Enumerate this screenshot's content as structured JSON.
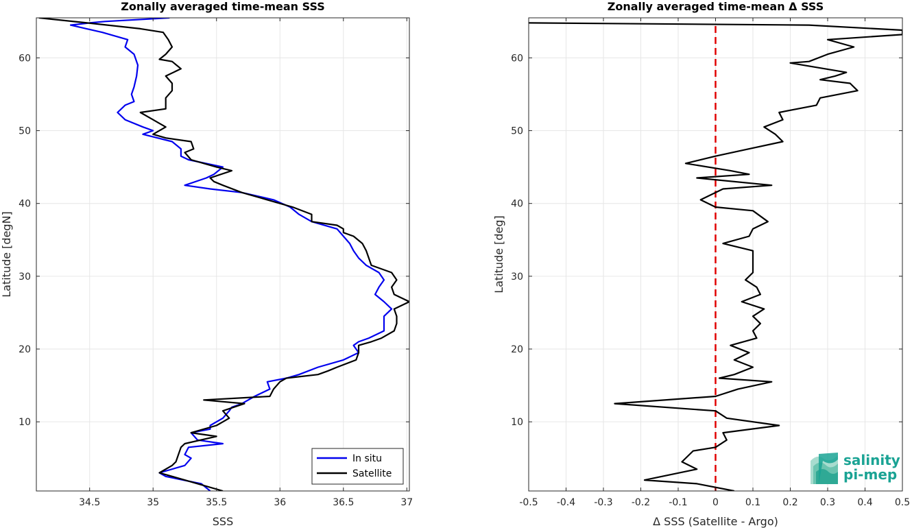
{
  "logo": {
    "line1": "salinity",
    "line2": "pi-mep",
    "color": "#1aa394"
  },
  "chart_data": [
    {
      "type": "line",
      "title": "Zonally averaged time-mean SSS",
      "xlabel": "SSS",
      "ylabel": "Latitude [degN]",
      "xlim": [
        34.08,
        37.02
      ],
      "ylim": [
        0.5,
        65.5
      ],
      "xticks": [
        34.5,
        35,
        35.5,
        36,
        36.5,
        37
      ],
      "yticks": [
        10,
        20,
        30,
        40,
        50,
        60
      ],
      "grid": true,
      "legend": "bottom-right",
      "series": [
        {
          "name": "In situ",
          "color": "#0000ee",
          "points": [
            [
              35.13,
              65.5
            ],
            [
              34.62,
              65.0
            ],
            [
              34.5,
              64.8
            ],
            [
              34.35,
              64.5
            ],
            [
              34.6,
              63.5
            ],
            [
              34.8,
              62.5
            ],
            [
              34.78,
              61.5
            ],
            [
              34.85,
              60.5
            ],
            [
              34.88,
              59.0
            ],
            [
              34.87,
              57.5
            ],
            [
              34.85,
              56.0
            ],
            [
              34.83,
              55.0
            ],
            [
              34.85,
              54.0
            ],
            [
              34.78,
              53.5
            ],
            [
              34.72,
              52.5
            ],
            [
              34.78,
              51.5
            ],
            [
              34.92,
              50.5
            ],
            [
              35.0,
              50.0
            ],
            [
              34.92,
              49.5
            ],
            [
              35.15,
              48.5
            ],
            [
              35.22,
              47.5
            ],
            [
              35.22,
              46.5
            ],
            [
              35.28,
              46.0
            ],
            [
              35.55,
              45.0
            ],
            [
              35.48,
              44.0
            ],
            [
              35.42,
              43.5
            ],
            [
              35.25,
              42.5
            ],
            [
              35.45,
              42.0
            ],
            [
              35.7,
              41.5
            ],
            [
              35.95,
              40.5
            ],
            [
              36.08,
              39.5
            ],
            [
              36.15,
              38.5
            ],
            [
              36.25,
              37.5
            ],
            [
              36.45,
              36.5
            ],
            [
              36.5,
              35.5
            ],
            [
              36.55,
              34.5
            ],
            [
              36.58,
              33.5
            ],
            [
              36.62,
              32.5
            ],
            [
              36.68,
              31.5
            ],
            [
              36.78,
              30.5
            ],
            [
              36.82,
              29.5
            ],
            [
              36.78,
              28.5
            ],
            [
              36.75,
              27.5
            ],
            [
              36.82,
              26.5
            ],
            [
              36.88,
              25.5
            ],
            [
              36.82,
              24.5
            ],
            [
              36.82,
              23.5
            ],
            [
              36.82,
              22.5
            ],
            [
              36.7,
              21.5
            ],
            [
              36.62,
              21.0
            ],
            [
              36.58,
              20.5
            ],
            [
              36.62,
              19.5
            ],
            [
              36.5,
              18.5
            ],
            [
              36.3,
              17.5
            ],
            [
              36.15,
              16.5
            ],
            [
              36.05,
              16.0
            ],
            [
              35.9,
              15.5
            ],
            [
              35.92,
              14.5
            ],
            [
              35.8,
              13.5
            ],
            [
              35.7,
              12.5
            ],
            [
              35.62,
              12.0
            ],
            [
              35.6,
              11.5
            ],
            [
              35.55,
              10.5
            ],
            [
              35.45,
              9.5
            ],
            [
              35.45,
              9.0
            ],
            [
              35.3,
              8.5
            ],
            [
              35.35,
              7.5
            ],
            [
              35.55,
              7.0
            ],
            [
              35.28,
              6.5
            ],
            [
              35.25,
              5.5
            ],
            [
              35.3,
              5.0
            ],
            [
              35.25,
              4.0
            ],
            [
              35.05,
              3.0
            ],
            [
              35.1,
              2.5
            ],
            [
              35.38,
              1.5
            ],
            [
              35.45,
              0.5
            ]
          ]
        },
        {
          "name": "Satellite",
          "color": "#000000",
          "points": [
            [
              34.1,
              65.5
            ],
            [
              34.48,
              64.8
            ],
            [
              34.9,
              64.0
            ],
            [
              35.08,
              63.5
            ],
            [
              35.12,
              62.5
            ],
            [
              35.15,
              61.5
            ],
            [
              35.1,
              60.5
            ],
            [
              35.05,
              59.8
            ],
            [
              35.15,
              59.5
            ],
            [
              35.22,
              58.5
            ],
            [
              35.1,
              57.5
            ],
            [
              35.15,
              56.5
            ],
            [
              35.15,
              55.5
            ],
            [
              35.1,
              54.5
            ],
            [
              35.1,
              53.0
            ],
            [
              34.9,
              52.5
            ],
            [
              35.0,
              51.5
            ],
            [
              35.05,
              51.0
            ],
            [
              35.1,
              50.5
            ],
            [
              35.0,
              49.5
            ],
            [
              35.1,
              49.0
            ],
            [
              35.3,
              48.5
            ],
            [
              35.32,
              47.5
            ],
            [
              35.25,
              47.0
            ],
            [
              35.3,
              46.0
            ],
            [
              35.4,
              45.5
            ],
            [
              35.5,
              45.0
            ],
            [
              35.62,
              44.5
            ],
            [
              35.45,
              43.5
            ],
            [
              35.48,
              43.0
            ],
            [
              35.55,
              42.5
            ],
            [
              35.7,
              41.5
            ],
            [
              35.9,
              40.5
            ],
            [
              36.1,
              39.5
            ],
            [
              36.25,
              38.5
            ],
            [
              36.25,
              37.5
            ],
            [
              36.45,
              37.0
            ],
            [
              36.5,
              36.5
            ],
            [
              36.5,
              36.0
            ],
            [
              36.58,
              35.5
            ],
            [
              36.65,
              34.5
            ],
            [
              36.68,
              33.5
            ],
            [
              36.7,
              32.5
            ],
            [
              36.72,
              31.5
            ],
            [
              36.88,
              30.5
            ],
            [
              36.92,
              29.5
            ],
            [
              36.88,
              28.5
            ],
            [
              36.9,
              27.5
            ],
            [
              37.02,
              26.5
            ],
            [
              36.9,
              25.5
            ],
            [
              36.92,
              24.5
            ],
            [
              36.92,
              23.5
            ],
            [
              36.9,
              22.5
            ],
            [
              36.8,
              21.5
            ],
            [
              36.72,
              21.0
            ],
            [
              36.62,
              20.5
            ],
            [
              36.62,
              19.5
            ],
            [
              36.6,
              18.5
            ],
            [
              36.45,
              17.5
            ],
            [
              36.38,
              17.0
            ],
            [
              36.3,
              16.5
            ],
            [
              36.05,
              16.0
            ],
            [
              36.0,
              15.5
            ],
            [
              35.95,
              14.5
            ],
            [
              35.92,
              13.5
            ],
            [
              35.4,
              13.0
            ],
            [
              35.72,
              12.5
            ],
            [
              35.55,
              11.5
            ],
            [
              35.6,
              10.5
            ],
            [
              35.55,
              10.0
            ],
            [
              35.5,
              9.5
            ],
            [
              35.3,
              8.5
            ],
            [
              35.5,
              8.0
            ],
            [
              35.25,
              7.0
            ],
            [
              35.22,
              6.5
            ],
            [
              35.2,
              5.5
            ],
            [
              35.18,
              4.5
            ],
            [
              35.15,
              4.0
            ],
            [
              35.05,
              3.0
            ],
            [
              35.25,
              2.0
            ],
            [
              35.55,
              0.5
            ]
          ]
        }
      ]
    },
    {
      "type": "line",
      "title": "Zonally averaged time-mean Δ SSS",
      "xlabel": "Δ SSS (Satellite - Argo)",
      "ylabel": "Latitude [deg]",
      "xlim": [
        -0.5,
        0.5
      ],
      "ylim": [
        0.5,
        65.5
      ],
      "xticks": [
        -0.5,
        -0.4,
        -0.3,
        -0.2,
        -0.1,
        0,
        0.1,
        0.2,
        0.3,
        0.4,
        0.5
      ],
      "yticks": [
        10,
        20,
        30,
        40,
        50,
        60
      ],
      "grid": true,
      "reference_line": {
        "x": 0,
        "color": "#e00000",
        "style": "dashed"
      },
      "series": [
        {
          "color": "#000000",
          "points": [
            [
              -0.5,
              64.8
            ],
            [
              0.25,
              64.5
            ],
            [
              0.5,
              63.8
            ],
            [
              0.5,
              63.2
            ],
            [
              0.3,
              62.5
            ],
            [
              0.37,
              61.5
            ],
            [
              0.3,
              60.5
            ],
            [
              0.25,
              59.5
            ],
            [
              0.2,
              59.3
            ],
            [
              0.35,
              58.0
            ],
            [
              0.32,
              57.5
            ],
            [
              0.28,
              57.0
            ],
            [
              0.36,
              56.5
            ],
            [
              0.38,
              55.5
            ],
            [
              0.28,
              54.5
            ],
            [
              0.27,
              53.5
            ],
            [
              0.17,
              52.5
            ],
            [
              0.18,
              51.5
            ],
            [
              0.13,
              50.5
            ],
            [
              0.16,
              49.5
            ],
            [
              0.18,
              48.5
            ],
            [
              0.09,
              47.5
            ],
            [
              0.0,
              46.5
            ],
            [
              -0.08,
              45.5
            ],
            [
              0.04,
              44.5
            ],
            [
              0.09,
              44.0
            ],
            [
              -0.05,
              43.5
            ],
            [
              0.15,
              42.5
            ],
            [
              0.02,
              42.0
            ],
            [
              -0.04,
              40.5
            ],
            [
              0.0,
              39.5
            ],
            [
              0.1,
              39.0
            ],
            [
              0.14,
              37.5
            ],
            [
              0.1,
              36.5
            ],
            [
              0.09,
              35.5
            ],
            [
              0.02,
              34.5
            ],
            [
              0.1,
              33.5
            ],
            [
              0.1,
              32.5
            ],
            [
              0.1,
              31.5
            ],
            [
              0.1,
              30.5
            ],
            [
              0.08,
              29.5
            ],
            [
              0.11,
              28.5
            ],
            [
              0.12,
              27.5
            ],
            [
              0.07,
              26.5
            ],
            [
              0.13,
              25.5
            ],
            [
              0.1,
              24.5
            ],
            [
              0.12,
              23.5
            ],
            [
              0.1,
              22.5
            ],
            [
              0.11,
              21.5
            ],
            [
              0.04,
              20.5
            ],
            [
              0.09,
              19.5
            ],
            [
              0.05,
              18.5
            ],
            [
              0.1,
              17.5
            ],
            [
              0.05,
              16.5
            ],
            [
              0.01,
              16.0
            ],
            [
              0.15,
              15.5
            ],
            [
              0.06,
              14.5
            ],
            [
              0.0,
              13.5
            ],
            [
              -0.27,
              12.5
            ],
            [
              0.0,
              11.5
            ],
            [
              0.03,
              10.5
            ],
            [
              0.17,
              9.5
            ],
            [
              0.02,
              8.5
            ],
            [
              0.03,
              7.5
            ],
            [
              0.0,
              6.5
            ],
            [
              -0.06,
              6.0
            ],
            [
              -0.09,
              4.5
            ],
            [
              -0.05,
              3.5
            ],
            [
              -0.19,
              2.0
            ],
            [
              -0.05,
              1.5
            ],
            [
              0.05,
              0.5
            ]
          ]
        }
      ]
    }
  ]
}
